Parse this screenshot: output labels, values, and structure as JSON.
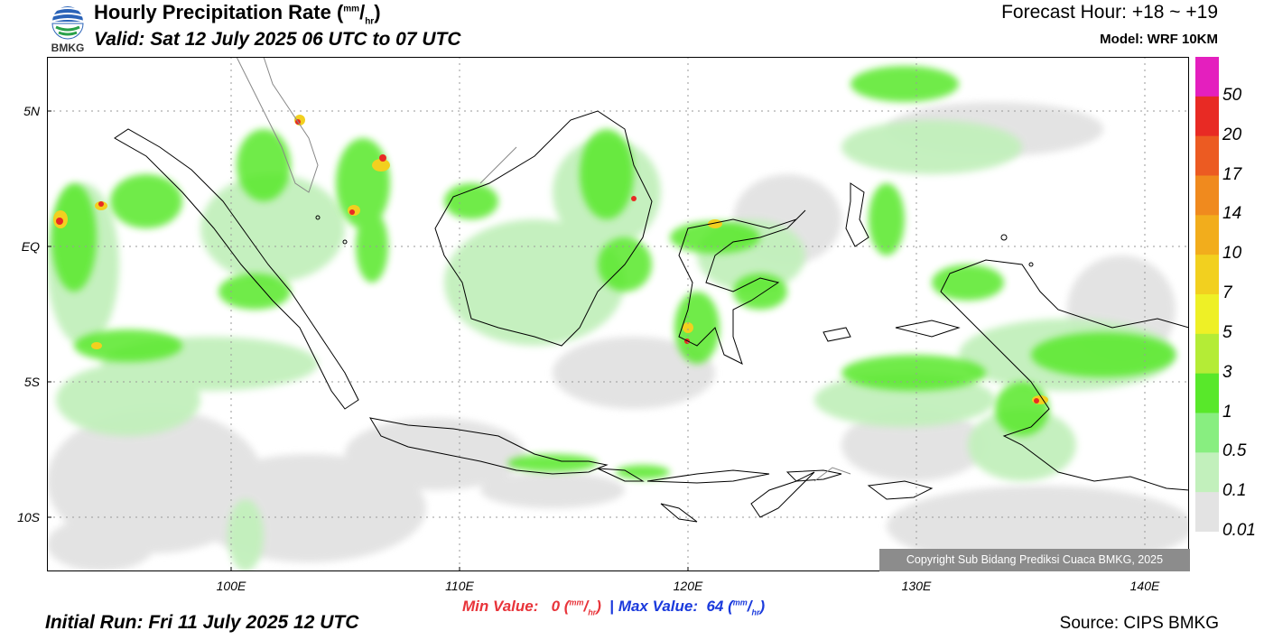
{
  "header": {
    "title_main": "Hourly Precipitation Rate (",
    "title_unit_num": "mm",
    "title_unit_den": "hr",
    "title_close": ")",
    "valid": "Valid: Sat 12 July 2025 06 UTC to 07 UTC",
    "forecast_hour": "Forecast Hour: +18 ~ +19",
    "model": "Model: WRF 10KM",
    "logo_text": "BMKG"
  },
  "map": {
    "lat_ticks": [
      "5N",
      "EQ",
      "5S",
      "10S"
    ],
    "lon_ticks": [
      "100E",
      "110E",
      "120E",
      "130E",
      "140E"
    ],
    "grid": true,
    "land_outline_color": "#000000",
    "grid_color": "#999999"
  },
  "colorbar": {
    "labels": [
      "50",
      "20",
      "17",
      "14",
      "10",
      "7",
      "5",
      "3",
      "1",
      "0.5",
      "0.1",
      "0.01"
    ],
    "colors": [
      "#e41fbe",
      "#e82a24",
      "#ec5b22",
      "#f08a1e",
      "#f2ad1c",
      "#f2d01f",
      "#eef026",
      "#b4ec36",
      "#58e82a",
      "#88ee80",
      "#c2f0bc",
      "#e3e3e3"
    ]
  },
  "footer": {
    "min_label": "Min Value:",
    "min_value": "0",
    "max_label": "Max Value:",
    "max_value": "64",
    "unit_num": "mm",
    "unit_den": "hr",
    "separator": "|",
    "initial_run": "Initial Run: Fri 11 July 2025 12 UTC",
    "source": "Source: CIPS BMKG",
    "copyright": "Copyright Sub Bidang Prediksi Cuaca BMKG, 2025"
  }
}
